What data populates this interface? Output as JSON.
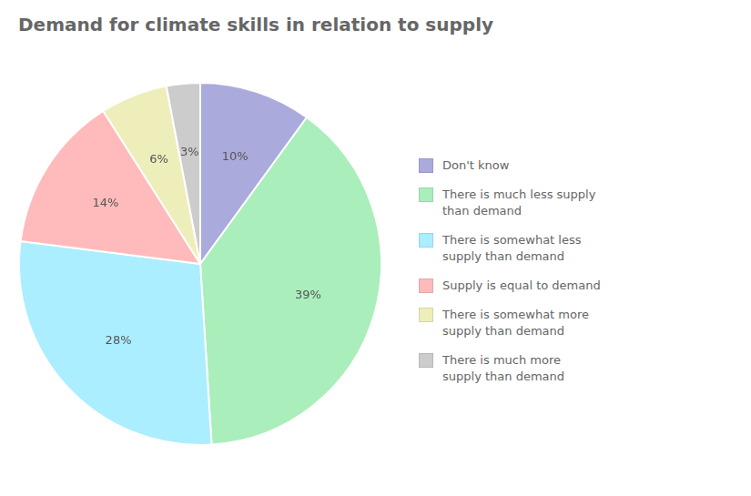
{
  "chart_data": {
    "type": "pie",
    "title": "Demand for climate skills in relation to supply",
    "categories": [
      "Don't know",
      "There is much less supply\nthan demand",
      "There is somewhat less\nsupply than demand",
      "Supply is equal to demand",
      "There is somewhat more\nsupply than demand",
      "There is much more\nsupply than demand"
    ],
    "values": [
      10,
      39,
      28,
      14,
      6,
      3
    ],
    "value_labels": [
      "10%",
      "39%",
      "28%",
      "14%",
      "6%",
      "3%"
    ],
    "colors": [
      "#aaaadd",
      "#aaeebb",
      "#aaeeff",
      "#ffbbbb",
      "#eeeebb",
      "#cccccc"
    ],
    "legend": "right",
    "data_labels": true
  }
}
